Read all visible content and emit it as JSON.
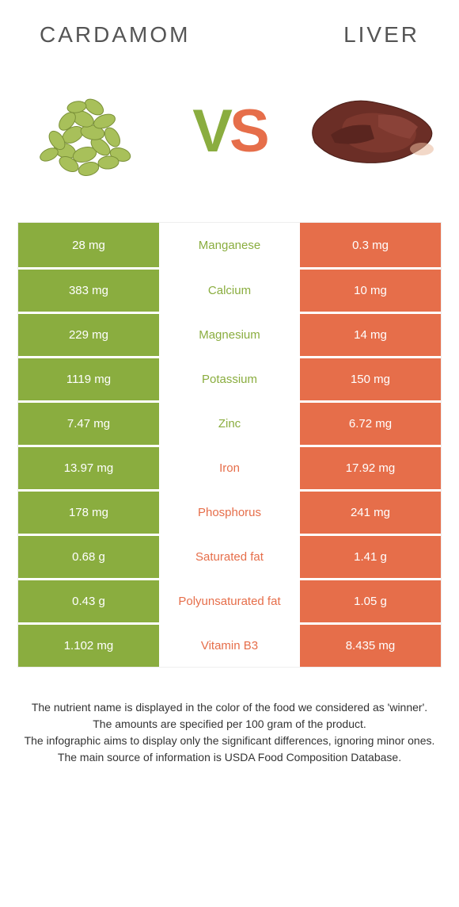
{
  "colors": {
    "green": "#8aad3f",
    "orange": "#e66e4a",
    "mid_green_text": "#8aad3f",
    "mid_orange_text": "#e66e4a"
  },
  "header": {
    "left": "CARDAMOM",
    "right": "LIVER"
  },
  "vs": {
    "v": "V",
    "s": "S"
  },
  "rows": [
    {
      "left": "28 mg",
      "mid": "Manganese",
      "right": "0.3 mg",
      "winner": "left"
    },
    {
      "left": "383 mg",
      "mid": "Calcium",
      "right": "10 mg",
      "winner": "left"
    },
    {
      "left": "229 mg",
      "mid": "Magnesium",
      "right": "14 mg",
      "winner": "left"
    },
    {
      "left": "1119 mg",
      "mid": "Potassium",
      "right": "150 mg",
      "winner": "left"
    },
    {
      "left": "7.47 mg",
      "mid": "Zinc",
      "right": "6.72 mg",
      "winner": "left"
    },
    {
      "left": "13.97 mg",
      "mid": "Iron",
      "right": "17.92 mg",
      "winner": "right"
    },
    {
      "left": "178 mg",
      "mid": "Phosphorus",
      "right": "241 mg",
      "winner": "right"
    },
    {
      "left": "0.68 g",
      "mid": "Saturated fat",
      "right": "1.41 g",
      "winner": "right"
    },
    {
      "left": "0.43 g",
      "mid": "Polyunsaturated fat",
      "right": "1.05 g",
      "winner": "right"
    },
    {
      "left": "1.102 mg",
      "mid": "Vitamin B3",
      "right": "8.435 mg",
      "winner": "right"
    }
  ],
  "footer": {
    "l1": "The nutrient name is displayed in the color of the food we considered as 'winner'.",
    "l2": "The amounts are specified per 100 gram of the product.",
    "l3": "The infographic aims to display only the significant differences, ignoring minor ones.",
    "l4": "The main source of information is USDA Food Composition Database."
  }
}
